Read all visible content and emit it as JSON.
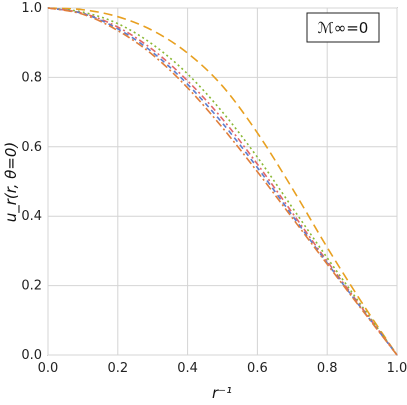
{
  "chart_data": {
    "type": "line",
    "xlabel": "r⁻¹",
    "ylabel": "u_r(r, θ=0)",
    "annotation": "ℳ∞=0",
    "xlim": [
      0,
      1
    ],
    "ylim": [
      0,
      1
    ],
    "grid": true,
    "x_ticks": [
      "0.0",
      "0.2",
      "0.4",
      "0.6",
      "0.8",
      "1.0"
    ],
    "y_ticks": [
      "0.0",
      "0.2",
      "0.4",
      "0.6",
      "0.8",
      "1.0"
    ],
    "x": [
      0.0,
      0.1,
      0.2,
      0.3,
      0.4,
      0.5,
      0.6,
      0.7,
      0.8,
      0.9,
      1.0
    ],
    "series": [
      {
        "color": "#e8a020",
        "style": "long-dash",
        "values": [
          1.0,
          0.995,
          0.975,
          0.935,
          0.87,
          0.775,
          0.64,
          0.48,
          0.31,
          0.15,
          0.0
        ]
      },
      {
        "color": "#8ab833",
        "style": "dotted",
        "values": [
          1.0,
          0.988,
          0.955,
          0.895,
          0.81,
          0.7,
          0.57,
          0.425,
          0.28,
          0.14,
          0.0
        ]
      },
      {
        "color": "#e06666",
        "style": "dash-dot",
        "values": [
          1.0,
          0.985,
          0.945,
          0.88,
          0.79,
          0.68,
          0.55,
          0.41,
          0.27,
          0.135,
          0.0
        ]
      },
      {
        "color": "#5b7ccf",
        "style": "dash",
        "values": [
          1.0,
          0.984,
          0.94,
          0.872,
          0.78,
          0.668,
          0.54,
          0.402,
          0.265,
          0.132,
          0.0
        ]
      },
      {
        "color": "#e07e3a",
        "style": "dash-dot-2",
        "values": [
          1.0,
          0.982,
          0.935,
          0.865,
          0.77,
          0.655,
          0.528,
          0.395,
          0.262,
          0.13,
          0.0
        ]
      }
    ]
  }
}
